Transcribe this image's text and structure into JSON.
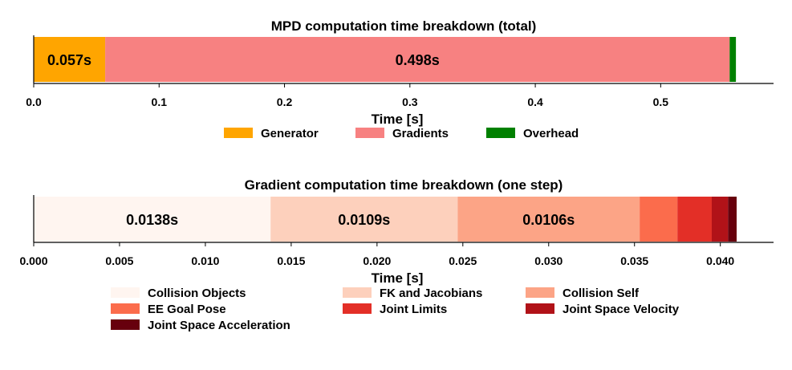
{
  "chart_data": [
    {
      "type": "bar",
      "orientation": "horizontal-stacked",
      "title": "MPD computation time breakdown (total)",
      "xlabel": "Time [s]",
      "xlim": [
        0.0,
        0.59
      ],
      "xticks": [
        0.0,
        0.1,
        0.2,
        0.3,
        0.4,
        0.5
      ],
      "xtick_labels": [
        "0.0",
        "0.1",
        "0.2",
        "0.3",
        "0.4",
        "0.5"
      ],
      "series": [
        {
          "name": "Generator",
          "value": 0.057,
          "color": "#ffa500",
          "label": "0.057s"
        },
        {
          "name": "Gradients",
          "value": 0.498,
          "color": "#f78181",
          "label": "0.498s"
        },
        {
          "name": "Overhead",
          "value": 0.005,
          "color": "#008000",
          "label": ""
        }
      ],
      "legend_columns": 3
    },
    {
      "type": "bar",
      "orientation": "horizontal-stacked",
      "title": "Gradient computation time breakdown (one step)",
      "xlabel": "Time [s]",
      "xlim": [
        0.0,
        0.0431
      ],
      "xticks": [
        0.0,
        0.005,
        0.01,
        0.015,
        0.02,
        0.025,
        0.03,
        0.035,
        0.04
      ],
      "xtick_labels": [
        "0.000",
        "0.005",
        "0.010",
        "0.015",
        "0.020",
        "0.025",
        "0.030",
        "0.035",
        "0.040"
      ],
      "series": [
        {
          "name": "Collision Objects",
          "value": 0.0138,
          "color": "#fff5f0",
          "label": "0.0138s"
        },
        {
          "name": "FK and Jacobians",
          "value": 0.0109,
          "color": "#fdd0bc",
          "label": "0.0109s"
        },
        {
          "name": "Collision Self",
          "value": 0.0106,
          "color": "#fca486",
          "label": "0.0106s"
        },
        {
          "name": "EE Goal Pose",
          "value": 0.0022,
          "color": "#fb6c4c",
          "label": ""
        },
        {
          "name": "Joint Limits",
          "value": 0.002,
          "color": "#e32f27",
          "label": ""
        },
        {
          "name": "Joint Space Velocity",
          "value": 0.00095,
          "color": "#b11218",
          "label": ""
        },
        {
          "name": "Joint Space Acceleration",
          "value": 0.0005,
          "color": "#67000d",
          "label": ""
        }
      ],
      "legend_columns": 3
    }
  ]
}
